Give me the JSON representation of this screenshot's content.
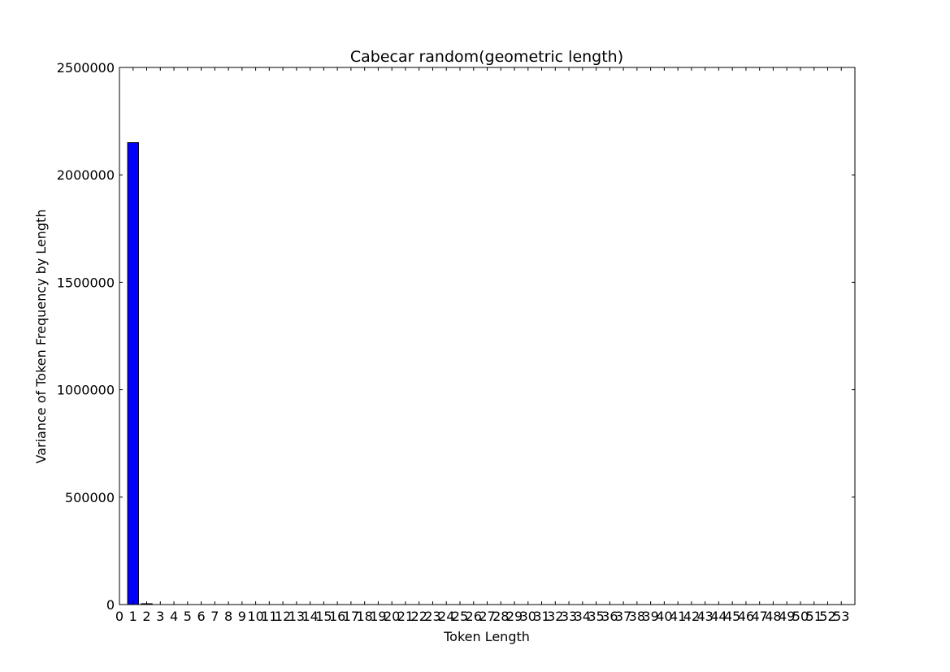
{
  "chart_data": {
    "type": "bar",
    "title": "Cabecar random(geometric length)",
    "xlabel": "Token Length",
    "ylabel": "Variance of Token Frequency by Length",
    "x": [
      1,
      2
    ],
    "values": [
      2150000,
      4000
    ],
    "xlim": [
      0,
      54
    ],
    "ylim": [
      0,
      2500000
    ],
    "xticks": [
      0,
      1,
      2,
      3,
      4,
      5,
      6,
      7,
      8,
      9,
      10,
      11,
      12,
      13,
      14,
      15,
      16,
      17,
      18,
      19,
      20,
      21,
      22,
      23,
      24,
      25,
      26,
      27,
      28,
      29,
      30,
      31,
      32,
      33,
      34,
      35,
      36,
      37,
      38,
      39,
      40,
      41,
      42,
      43,
      44,
      45,
      46,
      47,
      48,
      49,
      50,
      51,
      52,
      53
    ],
    "yticks": [
      0,
      500000,
      1000000,
      1500000,
      2000000,
      2500000
    ],
    "bar_color": "#0000ff",
    "edge_color": "#000000",
    "grid": false,
    "legend": "none"
  }
}
